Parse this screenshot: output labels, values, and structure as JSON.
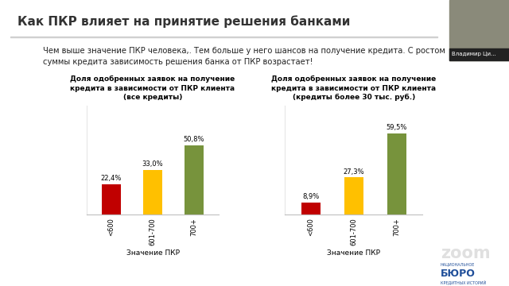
{
  "slide": {
    "title": "Как ПКР влияет на принятие решения банками",
    "text": "Чем выше значение ПКР человека,. Тем больше у него шансов на получение кредита. С ростом суммы кредита зависимость решения банка от ПКР возрастает!",
    "presenter": "Владимир Ци...",
    "logo": [
      "НАЦИОНАЛЬНОЕ",
      "БЮРО",
      "КРЕДИТНЫХ ИСТОРИЙ"
    ],
    "watermark": "zoom"
  },
  "chart_data": [
    {
      "type": "bar",
      "title": "Доля одобренных заявок на получение кредита в зависимости от ПКР клиента (все кредиты)",
      "categories": [
        "<600",
        "601-700",
        "700+"
      ],
      "values": [
        22.4,
        33.0,
        50.8
      ],
      "value_labels": [
        "22,4%",
        "33,0%",
        "50,8%"
      ],
      "colors": [
        "#c00000",
        "#ffc000",
        "#77933c"
      ],
      "x_label": "Значение ПКР",
      "ylim": [
        0,
        80
      ],
      "yticks": [],
      "data_labels": true,
      "tick_labels": "x"
    },
    {
      "type": "bar",
      "title": "Доля одобренных заявок на получение кредита в зависимости от ПКР клиента (кредиты более 30 тыс. руб.)",
      "categories": [
        "<600",
        "601-700",
        "700+"
      ],
      "values": [
        8.9,
        27.3,
        59.5
      ],
      "value_labels": [
        "8,9%",
        "27,3%",
        "59,5%"
      ],
      "colors": [
        "#c00000",
        "#ffc000",
        "#77933c"
      ],
      "x_label": "Значение ПКР",
      "ylim": [
        0,
        80
      ],
      "yticks": [],
      "data_labels": true,
      "tick_labels": "x"
    }
  ]
}
